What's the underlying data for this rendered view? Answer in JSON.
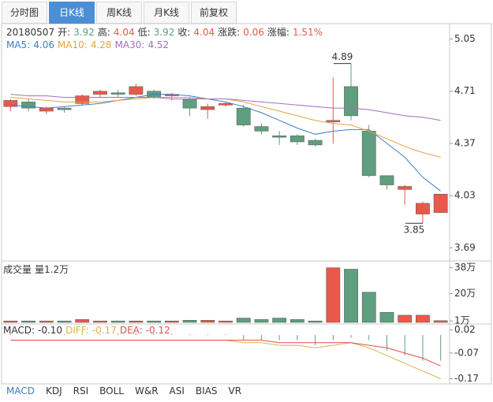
{
  "tabs": {
    "items": [
      "分时图",
      "日K线",
      "周K线",
      "月K线",
      "前复权"
    ],
    "selected": 1
  },
  "indicator_tabs": {
    "items": [
      "MACD",
      "KDJ",
      "RSI",
      "BOLL",
      "W&R",
      "ASI",
      "BIAS",
      "VR"
    ],
    "selected": 0
  },
  "info": {
    "date": "20180507",
    "labels": {
      "open": "开:",
      "high": "高:",
      "low": "低:",
      "close": "收:",
      "change": "涨跌:",
      "pct": "涨幅:"
    },
    "change": 0.06,
    "pct": "1.51%"
  },
  "chart_data": [
    {
      "type": "candlestick",
      "up_color": "#e8594a",
      "down_color": "#5f9e7e",
      "open": [
        4.61,
        4.64,
        4.58,
        4.6,
        4.63,
        4.69,
        4.7,
        4.69,
        4.71,
        4.68,
        4.66,
        4.59,
        4.62,
        4.6,
        4.48,
        4.42,
        4.42,
        4.39,
        4.51,
        4.74,
        4.45,
        4.16,
        4.07,
        3.91,
        3.92
      ],
      "high": [
        4.66,
        4.66,
        4.61,
        4.61,
        4.69,
        4.72,
        4.72,
        4.76,
        4.72,
        4.7,
        4.67,
        4.63,
        4.64,
        4.62,
        4.5,
        4.45,
        4.43,
        4.4,
        4.8,
        4.89,
        4.49,
        4.16,
        4.1,
        3.99,
        4.04
      ],
      "low": [
        4.58,
        4.58,
        4.56,
        4.57,
        4.62,
        4.67,
        4.67,
        4.68,
        4.66,
        4.65,
        4.55,
        4.53,
        4.61,
        4.48,
        4.43,
        4.36,
        4.36,
        4.35,
        4.37,
        4.52,
        4.15,
        4.07,
        3.97,
        3.85,
        3.92
      ],
      "close": [
        4.65,
        4.6,
        4.6,
        4.59,
        4.68,
        4.71,
        4.69,
        4.74,
        4.67,
        4.69,
        4.6,
        4.61,
        4.63,
        4.49,
        4.45,
        4.41,
        4.38,
        4.36,
        4.52,
        4.55,
        4.16,
        4.1,
        4.09,
        3.98,
        4.04
      ],
      "series": [
        {
          "name": "MA5:",
          "color": "#3d7fc4",
          "values": [
            4.62,
            4.61,
            4.6,
            4.61,
            4.62,
            4.63,
            4.65,
            4.67,
            4.69,
            4.69,
            4.68,
            4.66,
            4.64,
            4.61,
            4.57,
            4.52,
            4.47,
            4.43,
            4.45,
            4.46,
            4.46,
            4.37,
            4.28,
            4.15,
            4.06
          ]
        },
        {
          "name": "MA10:",
          "color": "#e8a33d",
          "values": [
            4.67,
            4.66,
            4.65,
            4.64,
            4.64,
            4.64,
            4.65,
            4.66,
            4.67,
            4.67,
            4.67,
            4.66,
            4.66,
            4.64,
            4.61,
            4.58,
            4.55,
            4.52,
            4.5,
            4.49,
            4.45,
            4.4,
            4.35,
            4.31,
            4.28
          ]
        },
        {
          "name": "MA30:",
          "color": "#a070c0",
          "values": [
            4.69,
            4.68,
            4.68,
            4.67,
            4.67,
            4.67,
            4.67,
            4.67,
            4.67,
            4.66,
            4.66,
            4.66,
            4.66,
            4.65,
            4.64,
            4.63,
            4.62,
            4.61,
            4.6,
            4.6,
            4.59,
            4.57,
            4.55,
            4.54,
            4.52
          ]
        }
      ],
      "ylim": [
        3.61,
        5.15
      ],
      "yticks": [
        5.05,
        4.71,
        4.37,
        4.03,
        3.69
      ]
    },
    {
      "type": "bar",
      "title": "成交量",
      "values": [
        1,
        1,
        1,
        1,
        2,
        1,
        1,
        1,
        1,
        1,
        1.5,
        1.5,
        1,
        3,
        2,
        3,
        2,
        1,
        38,
        37,
        21,
        7,
        5,
        5,
        1.2
      ],
      "value_labels": [
        null,
        null,
        null,
        null,
        null,
        null,
        null,
        null,
        null,
        null,
        null,
        null,
        null,
        null,
        null,
        null,
        null,
        null,
        null,
        null,
        null,
        null,
        null,
        null,
        "量1.2万"
      ],
      "ylim": [
        0,
        40
      ],
      "yticks": [
        {
          "value": 38,
          "label": "38万"
        },
        {
          "value": 20,
          "label": "20万"
        },
        {
          "value": 1,
          "label": "1万"
        }
      ]
    },
    {
      "type": "macd",
      "series": [
        {
          "name": "MACD:",
          "color": "#333333",
          "kind": "bar",
          "values": [
            0.004,
            0.003,
            0.002,
            0.002,
            0.004,
            0.004,
            0.005,
            0.006,
            0.005,
            0.004,
            0.002,
            0.001,
            0.002,
            -0.02,
            -0.02,
            -0.02,
            -0.02,
            -0.04,
            -0.02,
            -0.01,
            -0.02,
            -0.06,
            -0.08,
            -0.1,
            -0.1
          ],
          "value_labels": [
            null,
            null,
            null,
            null,
            null,
            null,
            null,
            null,
            null,
            null,
            null,
            null,
            null,
            null,
            null,
            null,
            null,
            null,
            null,
            null,
            null,
            null,
            null,
            null,
            "-0.10"
          ]
        },
        {
          "name": "DIFF:",
          "color": "#d9b44a",
          "kind": "line",
          "values": [
            -0.02,
            -0.02,
            -0.02,
            -0.02,
            -0.02,
            -0.02,
            -0.02,
            -0.02,
            -0.02,
            -0.02,
            -0.02,
            -0.02,
            -0.02,
            -0.03,
            -0.03,
            -0.04,
            -0.04,
            -0.05,
            -0.04,
            -0.03,
            -0.05,
            -0.08,
            -0.11,
            -0.14,
            -0.17
          ]
        },
        {
          "name": "DEA:",
          "color": "#d9534f",
          "kind": "line",
          "values": [
            -0.02,
            -0.02,
            -0.02,
            -0.02,
            -0.02,
            -0.02,
            -0.02,
            -0.02,
            -0.02,
            -0.02,
            -0.02,
            -0.02,
            -0.02,
            -0.02,
            -0.02,
            -0.03,
            -0.03,
            -0.03,
            -0.03,
            -0.03,
            -0.04,
            -0.05,
            -0.07,
            -0.09,
            -0.12
          ]
        }
      ],
      "up_color": "#e8594a",
      "down_color": "#5f9e7e",
      "ylim": [
        -0.19,
        0.04
      ],
      "yticks": [
        0.02,
        -0.07,
        -0.17
      ]
    }
  ]
}
